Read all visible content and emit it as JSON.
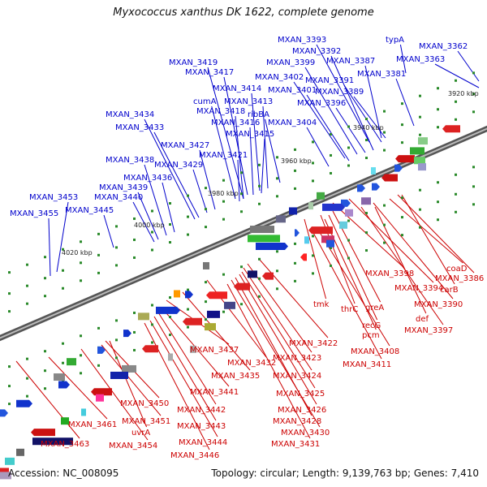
{
  "title": "Myxococcus xanthus DK 1622, complete genome",
  "footer": {
    "accession": "Accession: NC_008095",
    "topology": "Topology: circular; Length: 9,139,763 bp; Genes: 7,410"
  },
  "ticks": [
    "3920 kbp",
    "3940 kbp",
    "3960 kbp",
    "3980 kbp",
    "4000 kbp",
    "4020 kbp"
  ],
  "colors": {
    "plus_strand_label": "#0000cc",
    "minus_strand_label": "#cc0000",
    "backbone": "#666666"
  },
  "plus_strand_labels": [
    "MXAN_3393",
    "MXAN_3362",
    "typA",
    "MXAN_3392",
    "MXAN_3363",
    "MXAN_3419",
    "MXAN_3399",
    "MXAN_3387",
    "MXAN_3417",
    "MXAN_3402",
    "MXAN_3391",
    "MXAN_3381",
    "MXAN_3414",
    "MXAN_3401",
    "MXAN_3389",
    "cumA",
    "MXAN_3413",
    "MXAN_3396",
    "MXAN_3418",
    "ribBA",
    "MXAN_3434",
    "MXAN_3416",
    "MXAN_3404",
    "MXAN_3433",
    "MXAN_3415",
    "MXAN_3427",
    "MXAN_3421",
    "MXAN_3438",
    "MXAN_3429",
    "MXAN_3436",
    "MXAN_3439",
    "MXAN_3453",
    "MXAN_3440",
    "MXAN_3455",
    "MXAN_3445"
  ],
  "minus_strand_labels": [
    "coaD",
    "MXAN_3398",
    "MXAN_3386",
    "MXAN_3394",
    "carB",
    "tmk",
    "thrC",
    "greA",
    "MXAN_3390",
    "def",
    "recG",
    "MXAN_3397",
    "pcm",
    "MXAN_3422",
    "MXAN_3437",
    "MXAN_3408",
    "MXAN_3432",
    "MXAN_3423",
    "MXAN_3411",
    "MXAN_3435",
    "MXAN_3424",
    "MXAN_3441",
    "MXAN_3425",
    "MXAN_3450",
    "MXAN_3442",
    "MXAN_3426",
    "MXAN_3451",
    "MXAN_3461",
    "MXAN_3428",
    "MXAN_3443",
    "uvrA",
    "MXAN_3430",
    "MXAN_3444",
    "MXAN_3454",
    "MXAN_3463",
    "MXAN_3431",
    "MXAN_3446"
  ]
}
